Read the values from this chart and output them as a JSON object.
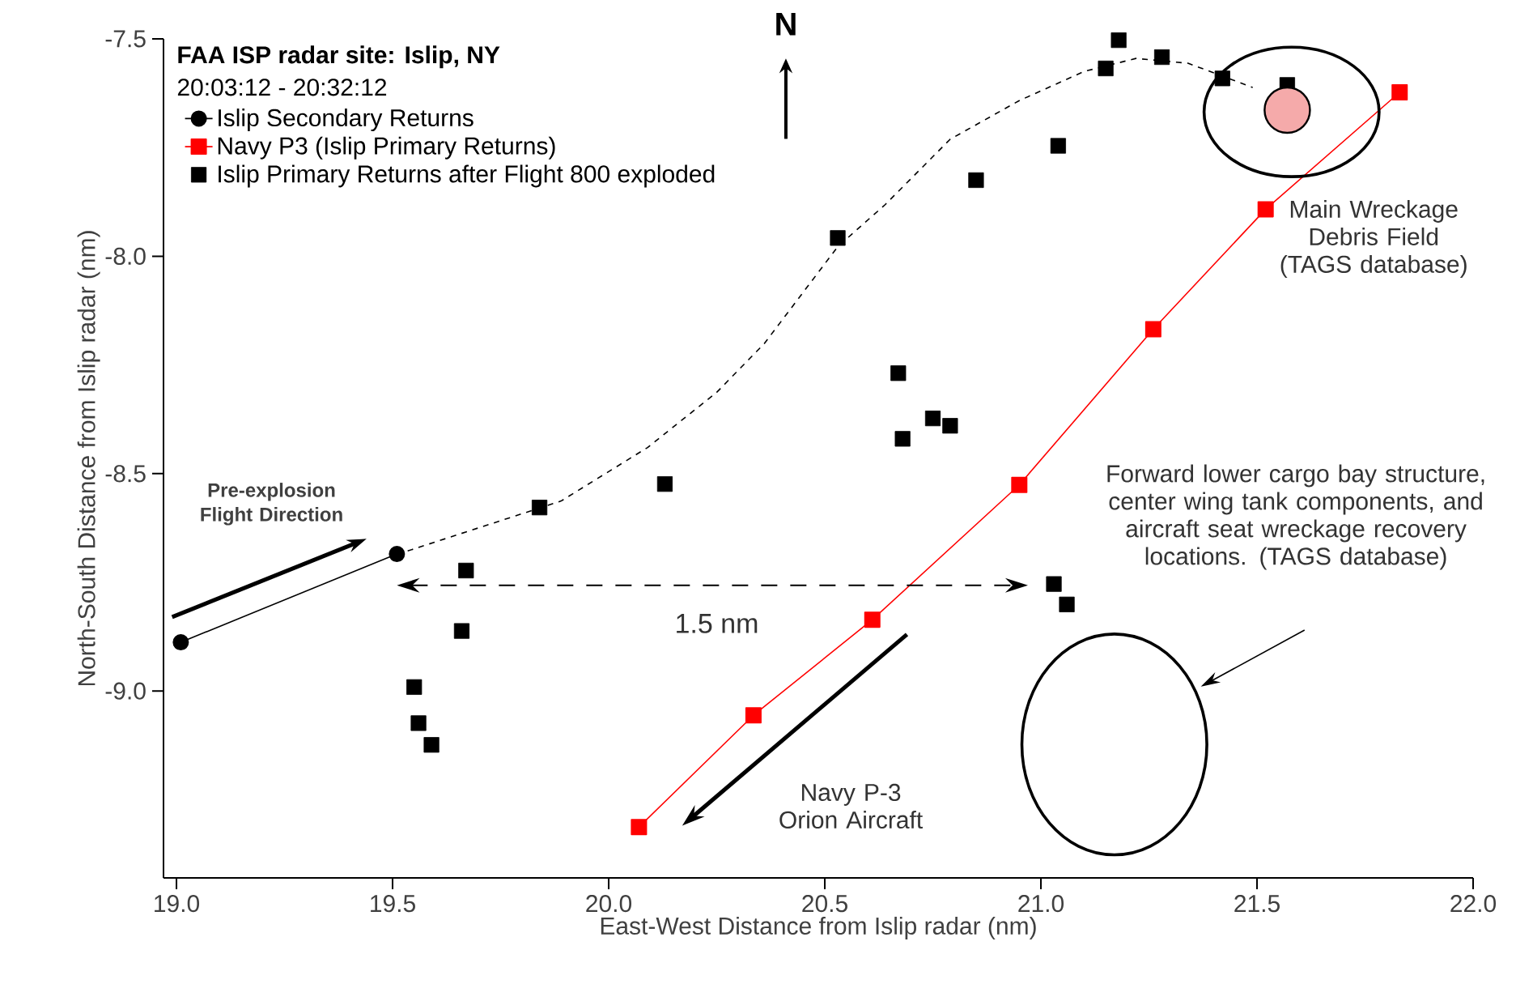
{
  "chart_data": {
    "type": "scatter",
    "title": "FAA ISP radar site: Islip, NY",
    "subtitle": "20:03:12 - 20:32:12",
    "xlabel": "East-West Distance from Islip radar (nm)",
    "ylabel": "North-South Distance from Islip radar (nm)",
    "xlim": [
      18.97,
      22.0
    ],
    "ylim": [
      -9.43,
      -7.5
    ],
    "xticks": [
      {
        "value": 19.0,
        "label": "19.0"
      },
      {
        "value": 19.5,
        "label": "19.5"
      },
      {
        "value": 20.0,
        "label": "20.0"
      },
      {
        "value": 20.5,
        "label": "20.5"
      },
      {
        "value": 21.0,
        "label": "21.0"
      },
      {
        "value": 21.5,
        "label": "21.5"
      },
      {
        "value": 22.0,
        "label": "22.0"
      }
    ],
    "yticks": [
      {
        "value": -9.0,
        "label": "-9.0"
      },
      {
        "value": -8.5,
        "label": "-8.5"
      },
      {
        "value": -8.0,
        "label": "-8.0"
      },
      {
        "value": -7.5,
        "label": "-7.5"
      }
    ],
    "legend": "top left",
    "series": [
      {
        "name": "Islip Secondary Returns",
        "type": "line",
        "color": "#000000",
        "marker": "circle",
        "line_style": "solid",
        "x": [
          19.01,
          19.51
        ],
        "values": [
          -8.888,
          -8.685
        ]
      },
      {
        "name": "Navy P3 (Islip Primary Returns)",
        "type": "line",
        "color": "#ff0000",
        "marker": "square",
        "line_style": "solid",
        "x": [
          20.07,
          20.335,
          20.61,
          20.95,
          21.26,
          21.52,
          21.83
        ],
        "values": [
          -9.313,
          -9.056,
          -8.836,
          -8.526,
          -8.168,
          -7.892,
          -7.623
        ]
      },
      {
        "name": "Islip Primary Returns after Flight 800 exploded",
        "color": "#000000",
        "marker": "square",
        "x": [
          19.55,
          19.56,
          19.59,
          19.66,
          19.67,
          19.84,
          20.13,
          20.53,
          20.67,
          20.68,
          20.75,
          20.79,
          20.85,
          21.03,
          21.04,
          21.06,
          21.15,
          21.18,
          21.28,
          21.42,
          21.57
        ],
        "values": [
          -8.991,
          -9.074,
          -9.124,
          -8.862,
          -8.723,
          -8.578,
          -8.524,
          -7.958,
          -8.269,
          -8.42,
          -8.373,
          -8.39,
          -7.825,
          -8.754,
          -7.746,
          -8.801,
          -7.568,
          -7.503,
          -7.542,
          -7.591,
          -7.606
        ]
      },
      {
        "type": "line",
        "color": "#000000",
        "marker": "none",
        "line_style": "dashed",
        "x": [
          19.51,
          19.89,
          20.09,
          20.25,
          20.36,
          20.53,
          20.64,
          20.79,
          20.95,
          21.1,
          21.22,
          21.34,
          21.44,
          21.49
        ],
        "values": [
          -8.686,
          -8.563,
          -8.44,
          -8.313,
          -8.201,
          -7.978,
          -7.881,
          -7.731,
          -7.642,
          -7.575,
          -7.545,
          -7.556,
          -7.593,
          -7.612
        ]
      }
    ],
    "annotations": [
      "N",
      "Pre-explosion Flight Direction",
      "1.5 nm",
      "Navy P-3 Orion Aircraft",
      "Main Wreckage Debris Field (TAGS database)",
      "Forward lower cargo bay structure, center wing tank components, and aircraft seat wreckage recovery locations. (TAGS database)"
    ]
  }
}
